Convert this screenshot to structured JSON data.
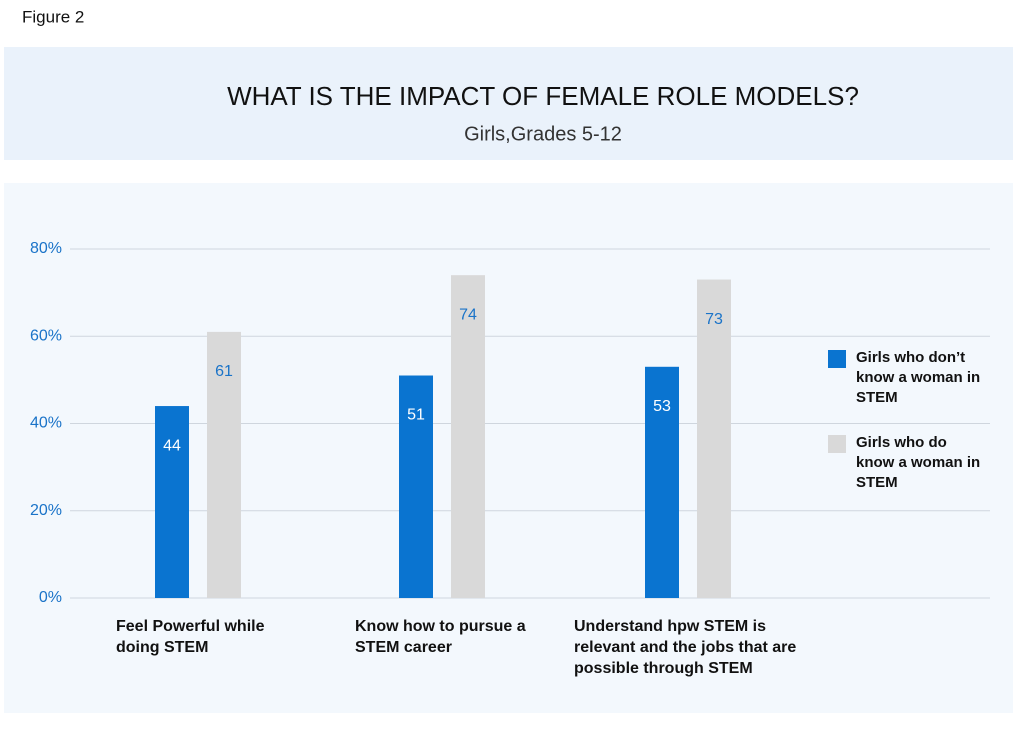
{
  "figure_label": "Figure 2",
  "chart_data": {
    "type": "bar",
    "title": "WHAT IS THE IMPACT OF FEMALE ROLE MODELS?",
    "subtitle": "Girls,Grades 5-12",
    "categories": [
      "Feel Powerful while doing STEM",
      "Know how to pursue a STEM career",
      "Understand hpw STEM is relevant and the jobs that are possible through STEM"
    ],
    "series": [
      {
        "name": "Girls who don’t know a woman in STEM",
        "color": "#0a74d0",
        "label_color": "#ffffff",
        "values": [
          44,
          51,
          53
        ]
      },
      {
        "name": "Girls who do know a woman in STEM",
        "color": "#d9d9d9",
        "label_color": "#1a73c8",
        "values": [
          61,
          74,
          73
        ]
      }
    ],
    "ylim": [
      0,
      80
    ],
    "yticks": [
      {
        "value": 0,
        "label": "0%"
      },
      {
        "value": 20,
        "label": "20%"
      },
      {
        "value": 40,
        "label": "40%"
      },
      {
        "value": 60,
        "label": "60%"
      },
      {
        "value": 80,
        "label": "80%"
      }
    ],
    "grid": true,
    "legend": "right"
  }
}
